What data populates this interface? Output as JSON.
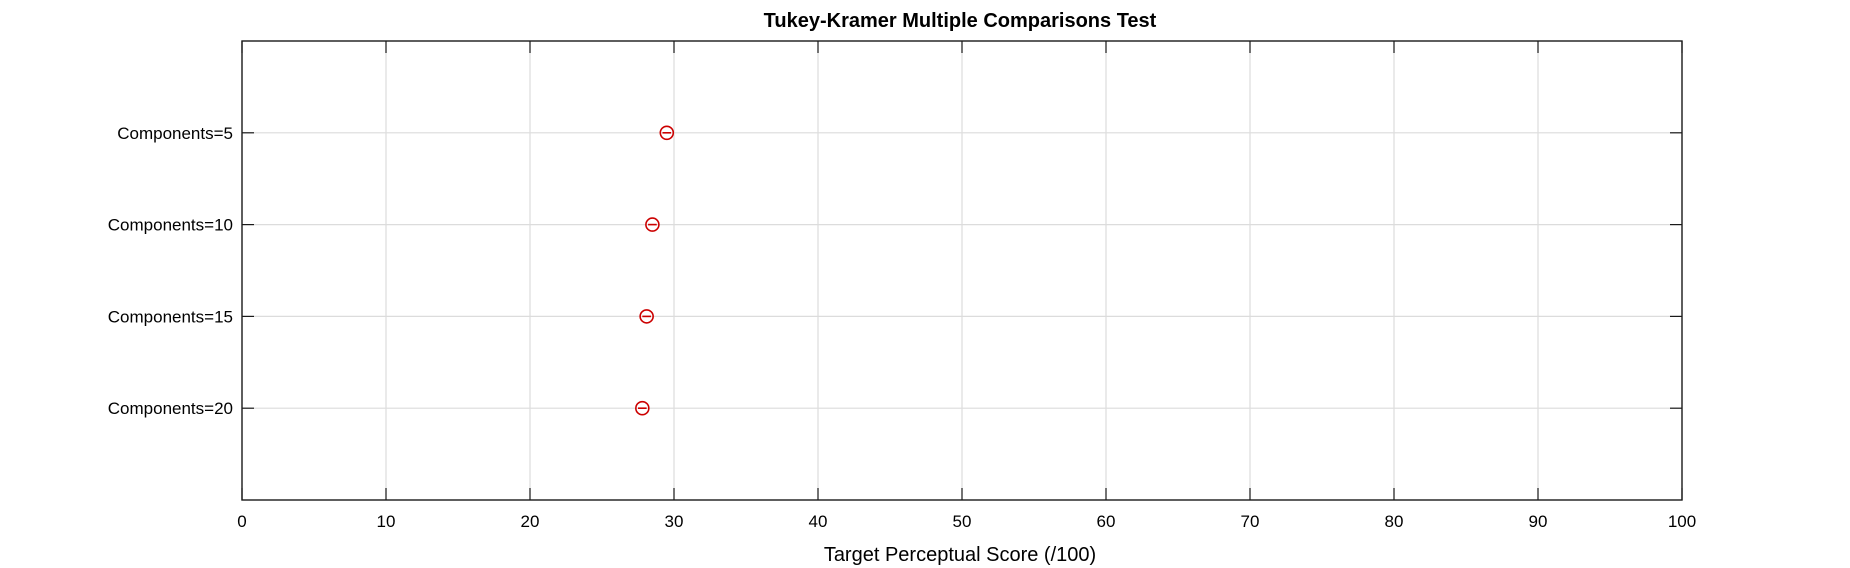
{
  "chart_data": {
    "type": "scatter",
    "title": "Tukey-Kramer Multiple Comparisons Test",
    "xlabel": "Target Perceptual Score  (/100)",
    "ylabel": "",
    "xlim": [
      0,
      100
    ],
    "xticks": [
      0,
      10,
      20,
      30,
      40,
      50,
      60,
      70,
      80,
      90,
      100
    ],
    "grid": true,
    "categories": [
      "Components=5",
      "Components=10",
      "Components=15",
      "Components=20"
    ],
    "series": [
      {
        "marker": "circle-with-interval",
        "color": "#cc0000",
        "means": [
          29.5,
          28.5,
          28.1,
          27.8
        ],
        "intervals": [
          [
            29.2,
            29.8
          ],
          [
            28.2,
            28.8
          ],
          [
            27.8,
            28.4
          ],
          [
            27.5,
            28.1
          ]
        ]
      }
    ]
  }
}
